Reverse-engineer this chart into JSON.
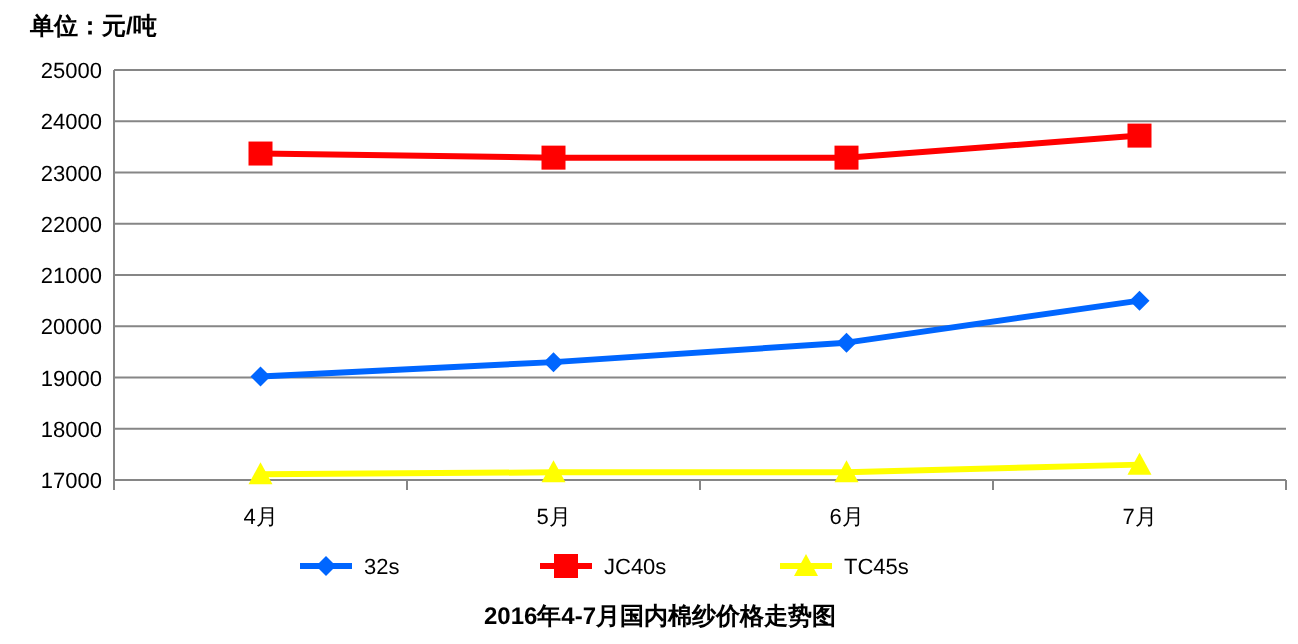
{
  "chart_data": {
    "type": "line",
    "title": "2016年4-7月国内棉纱价格走势图",
    "ylabel": "单位：元/吨",
    "categories": [
      "4月",
      "5月",
      "6月",
      "7月"
    ],
    "series": [
      {
        "name": "32s",
        "color": "#0066ff",
        "marker": "diamond",
        "values": [
          19020,
          19300,
          19680,
          20500
        ]
      },
      {
        "name": "JC40s",
        "color": "#ff0000",
        "marker": "square",
        "values": [
          23370,
          23290,
          23290,
          23720
        ]
      },
      {
        "name": "TC45s",
        "color": "#ffff00",
        "marker": "triangle",
        "values": [
          17110,
          17150,
          17150,
          17300
        ]
      }
    ],
    "ylim": [
      17000,
      25000
    ],
    "yticks": [
      17000,
      18000,
      19000,
      20000,
      21000,
      22000,
      23000,
      24000,
      25000
    ],
    "grid": "y",
    "legend": "bottom",
    "line_style": "solid"
  }
}
